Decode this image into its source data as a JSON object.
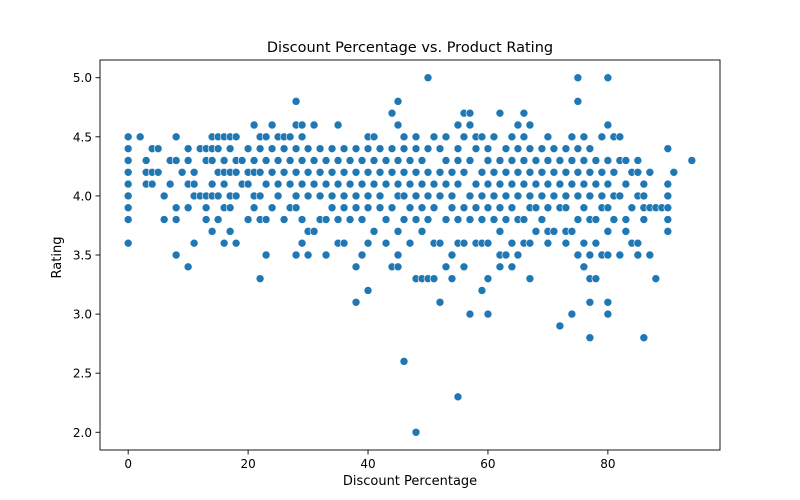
{
  "chart_data": {
    "type": "scatter",
    "title": "Discount Percentage vs. Product Rating",
    "xlabel": "Discount Percentage",
    "ylabel": "Rating",
    "xlim": [
      -4.7,
      98.7
    ],
    "ylim": [
      1.85,
      5.15
    ],
    "xticks": [
      0,
      20,
      40,
      60,
      80
    ],
    "yticks": [
      2.0,
      2.5,
      3.0,
      3.5,
      4.0,
      4.5,
      5.0
    ],
    "xtick_labels": [
      "0",
      "20",
      "40",
      "60",
      "80"
    ],
    "ytick_labels": [
      "2.0",
      "2.5",
      "3.0",
      "3.5",
      "4.0",
      "4.5",
      "5.0"
    ],
    "grid": false,
    "marker_color": "#1f77b4",
    "points": [
      [
        0,
        3.6
      ],
      [
        0,
        3.8
      ],
      [
        0,
        3.9
      ],
      [
        0,
        4.0
      ],
      [
        0,
        4.1
      ],
      [
        0,
        4.2
      ],
      [
        0,
        4.3
      ],
      [
        0,
        4.4
      ],
      [
        0,
        4.5
      ],
      [
        2,
        4.5
      ],
      [
        3,
        4.3
      ],
      [
        3,
        4.2
      ],
      [
        3,
        4.1
      ],
      [
        4,
        4.1
      ],
      [
        4,
        4.2
      ],
      [
        4,
        4.4
      ],
      [
        5,
        4.4
      ],
      [
        5,
        4.2
      ],
      [
        6,
        3.8
      ],
      [
        6,
        4.0
      ],
      [
        7,
        4.1
      ],
      [
        7,
        4.3
      ],
      [
        8,
        3.5
      ],
      [
        8,
        3.8
      ],
      [
        8,
        3.9
      ],
      [
        8,
        4.3
      ],
      [
        8,
        4.5
      ],
      [
        9,
        4.2
      ],
      [
        10,
        3.4
      ],
      [
        10,
        3.9
      ],
      [
        10,
        4.1
      ],
      [
        10,
        4.3
      ],
      [
        10,
        4.4
      ],
      [
        11,
        3.6
      ],
      [
        11,
        4.0
      ],
      [
        11,
        4.1
      ],
      [
        11,
        4.2
      ],
      [
        12,
        4.0
      ],
      [
        12,
        4.4
      ],
      [
        13,
        3.8
      ],
      [
        13,
        3.9
      ],
      [
        13,
        4.0
      ],
      [
        13,
        4.3
      ],
      [
        13,
        4.4
      ],
      [
        14,
        3.7
      ],
      [
        14,
        4.0
      ],
      [
        14,
        4.1
      ],
      [
        14,
        4.3
      ],
      [
        14,
        4.4
      ],
      [
        14,
        4.5
      ],
      [
        15,
        3.8
      ],
      [
        15,
        4.0
      ],
      [
        15,
        4.2
      ],
      [
        15,
        4.4
      ],
      [
        15,
        4.5
      ],
      [
        16,
        3.6
      ],
      [
        16,
        3.9
      ],
      [
        16,
        4.1
      ],
      [
        16,
        4.2
      ],
      [
        16,
        4.3
      ],
      [
        16,
        4.5
      ],
      [
        17,
        3.7
      ],
      [
        17,
        3.9
      ],
      [
        17,
        4.0
      ],
      [
        17,
        4.2
      ],
      [
        17,
        4.4
      ],
      [
        17,
        4.5
      ],
      [
        18,
        3.6
      ],
      [
        18,
        4.0
      ],
      [
        18,
        4.2
      ],
      [
        18,
        4.3
      ],
      [
        18,
        4.5
      ],
      [
        19,
        4.1
      ],
      [
        19,
        4.3
      ],
      [
        20,
        3.8
      ],
      [
        20,
        4.1
      ],
      [
        20,
        4.2
      ],
      [
        20,
        4.4
      ],
      [
        21,
        3.9
      ],
      [
        21,
        4.0
      ],
      [
        21,
        4.2
      ],
      [
        21,
        4.3
      ],
      [
        21,
        4.6
      ],
      [
        22,
        3.3
      ],
      [
        22,
        3.8
      ],
      [
        22,
        4.0
      ],
      [
        22,
        4.2
      ],
      [
        22,
        4.4
      ],
      [
        22,
        4.5
      ],
      [
        23,
        3.5
      ],
      [
        23,
        3.8
      ],
      [
        23,
        4.1
      ],
      [
        23,
        4.3
      ],
      [
        23,
        4.5
      ],
      [
        24,
        3.9
      ],
      [
        24,
        4.2
      ],
      [
        24,
        4.4
      ],
      [
        24,
        4.6
      ],
      [
        25,
        4.0
      ],
      [
        25,
        4.1
      ],
      [
        25,
        4.3
      ],
      [
        25,
        4.5
      ],
      [
        26,
        3.8
      ],
      [
        26,
        4.2
      ],
      [
        26,
        4.4
      ],
      [
        26,
        4.5
      ],
      [
        27,
        3.9
      ],
      [
        27,
        4.1
      ],
      [
        27,
        4.3
      ],
      [
        27,
        4.5
      ],
      [
        28,
        3.5
      ],
      [
        28,
        3.9
      ],
      [
        28,
        4.0
      ],
      [
        28,
        4.2
      ],
      [
        28,
        4.4
      ],
      [
        28,
        4.6
      ],
      [
        28,
        4.8
      ],
      [
        29,
        3.6
      ],
      [
        29,
        3.8
      ],
      [
        29,
        4.1
      ],
      [
        29,
        4.3
      ],
      [
        29,
        4.5
      ],
      [
        29,
        4.6
      ],
      [
        30,
        3.5
      ],
      [
        30,
        3.7
      ],
      [
        30,
        4.0
      ],
      [
        30,
        4.2
      ],
      [
        30,
        4.4
      ],
      [
        31,
        3.7
      ],
      [
        31,
        4.1
      ],
      [
        31,
        4.3
      ],
      [
        31,
        4.6
      ],
      [
        32,
        3.8
      ],
      [
        32,
        4.0
      ],
      [
        32,
        4.2
      ],
      [
        32,
        4.4
      ],
      [
        33,
        3.5
      ],
      [
        33,
        3.8
      ],
      [
        33,
        4.1
      ],
      [
        33,
        4.3
      ],
      [
        34,
        3.9
      ],
      [
        34,
        4.0
      ],
      [
        34,
        4.2
      ],
      [
        34,
        4.4
      ],
      [
        35,
        3.6
      ],
      [
        35,
        3.8
      ],
      [
        35,
        4.1
      ],
      [
        35,
        4.3
      ],
      [
        35,
        4.6
      ],
      [
        36,
        3.6
      ],
      [
        36,
        3.9
      ],
      [
        36,
        4.0
      ],
      [
        36,
        4.2
      ],
      [
        36,
        4.4
      ],
      [
        37,
        3.8
      ],
      [
        37,
        4.1
      ],
      [
        37,
        4.3
      ],
      [
        38,
        3.1
      ],
      [
        38,
        3.4
      ],
      [
        38,
        3.9
      ],
      [
        38,
        4.0
      ],
      [
        38,
        4.2
      ],
      [
        38,
        4.4
      ],
      [
        39,
        3.5
      ],
      [
        39,
        3.8
      ],
      [
        39,
        4.1
      ],
      [
        39,
        4.3
      ],
      [
        40,
        3.2
      ],
      [
        40,
        3.6
      ],
      [
        40,
        3.9
      ],
      [
        40,
        4.0
      ],
      [
        40,
        4.2
      ],
      [
        40,
        4.4
      ],
      [
        40,
        4.5
      ],
      [
        41,
        3.7
      ],
      [
        41,
        4.1
      ],
      [
        41,
        4.3
      ],
      [
        41,
        4.5
      ],
      [
        42,
        3.9
      ],
      [
        42,
        4.0
      ],
      [
        42,
        4.2
      ],
      [
        42,
        4.4
      ],
      [
        43,
        3.6
      ],
      [
        43,
        3.8
      ],
      [
        43,
        4.1
      ],
      [
        43,
        4.3
      ],
      [
        44,
        3.4
      ],
      [
        44,
        3.9
      ],
      [
        44,
        4.2
      ],
      [
        44,
        4.4
      ],
      [
        44,
        4.7
      ],
      [
        45,
        3.4
      ],
      [
        45,
        3.5
      ],
      [
        45,
        3.7
      ],
      [
        45,
        4.0
      ],
      [
        45,
        4.1
      ],
      [
        45,
        4.3
      ],
      [
        45,
        4.6
      ],
      [
        45,
        4.8
      ],
      [
        46,
        2.6
      ],
      [
        46,
        3.8
      ],
      [
        46,
        4.0
      ],
      [
        46,
        4.2
      ],
      [
        46,
        4.4
      ],
      [
        46,
        4.5
      ],
      [
        47,
        3.6
      ],
      [
        47,
        3.9
      ],
      [
        47,
        4.1
      ],
      [
        47,
        4.3
      ],
      [
        48,
        2.0
      ],
      [
        48,
        3.3
      ],
      [
        48,
        3.8
      ],
      [
        48,
        4.0
      ],
      [
        48,
        4.2
      ],
      [
        48,
        4.4
      ],
      [
        48,
        4.5
      ],
      [
        49,
        3.3
      ],
      [
        49,
        3.7
      ],
      [
        49,
        3.9
      ],
      [
        49,
        4.1
      ],
      [
        49,
        4.3
      ],
      [
        50,
        3.3
      ],
      [
        50,
        3.8
      ],
      [
        50,
        4.0
      ],
      [
        50,
        4.2
      ],
      [
        50,
        4.4
      ],
      [
        50,
        5.0
      ],
      [
        51,
        3.3
      ],
      [
        51,
        3.6
      ],
      [
        51,
        3.9
      ],
      [
        51,
        4.1
      ],
      [
        51,
        4.5
      ],
      [
        52,
        3.1
      ],
      [
        52,
        3.6
      ],
      [
        52,
        4.0
      ],
      [
        52,
        4.2
      ],
      [
        52,
        4.4
      ],
      [
        53,
        3.4
      ],
      [
        53,
        3.8
      ],
      [
        53,
        4.1
      ],
      [
        53,
        4.3
      ],
      [
        53,
        4.5
      ],
      [
        54,
        3.3
      ],
      [
        54,
        3.5
      ],
      [
        54,
        3.9
      ],
      [
        54,
        4.0
      ],
      [
        54,
        4.2
      ],
      [
        55,
        2.3
      ],
      [
        55,
        3.6
      ],
      [
        55,
        3.8
      ],
      [
        55,
        4.1
      ],
      [
        55,
        4.3
      ],
      [
        55,
        4.4
      ],
      [
        55,
        4.6
      ],
      [
        56,
        3.4
      ],
      [
        56,
        3.6
      ],
      [
        56,
        3.9
      ],
      [
        56,
        4.2
      ],
      [
        56,
        4.5
      ],
      [
        56,
        4.7
      ],
      [
        57,
        3.0
      ],
      [
        57,
        3.8
      ],
      [
        57,
        4.0
      ],
      [
        57,
        4.3
      ],
      [
        57,
        4.6
      ],
      [
        57,
        4.7
      ],
      [
        58,
        3.6
      ],
      [
        58,
        3.9
      ],
      [
        58,
        4.1
      ],
      [
        58,
        4.4
      ],
      [
        58,
        4.5
      ],
      [
        59,
        3.2
      ],
      [
        59,
        3.6
      ],
      [
        59,
        3.8
      ],
      [
        59,
        4.0
      ],
      [
        59,
        4.2
      ],
      [
        59,
        4.5
      ],
      [
        60,
        3.0
      ],
      [
        60,
        3.3
      ],
      [
        60,
        3.6
      ],
      [
        60,
        3.9
      ],
      [
        60,
        4.1
      ],
      [
        60,
        4.3
      ],
      [
        60,
        4.4
      ],
      [
        61,
        3.8
      ],
      [
        61,
        4.0
      ],
      [
        61,
        4.2
      ],
      [
        61,
        4.5
      ],
      [
        62,
        3.4
      ],
      [
        62,
        3.5
      ],
      [
        62,
        3.7
      ],
      [
        62,
        3.9
      ],
      [
        62,
        4.1
      ],
      [
        62,
        4.3
      ],
      [
        62,
        4.7
      ],
      [
        63,
        3.5
      ],
      [
        63,
        3.8
      ],
      [
        63,
        4.0
      ],
      [
        63,
        4.2
      ],
      [
        63,
        4.4
      ],
      [
        64,
        3.4
      ],
      [
        64,
        3.6
      ],
      [
        64,
        3.9
      ],
      [
        64,
        4.1
      ],
      [
        64,
        4.3
      ],
      [
        64,
        4.5
      ],
      [
        65,
        3.5
      ],
      [
        65,
        3.8
      ],
      [
        65,
        4.0
      ],
      [
        65,
        4.2
      ],
      [
        65,
        4.4
      ],
      [
        65,
        4.6
      ],
      [
        66,
        3.6
      ],
      [
        66,
        3.8
      ],
      [
        66,
        4.1
      ],
      [
        66,
        4.3
      ],
      [
        66,
        4.5
      ],
      [
        66,
        4.7
      ],
      [
        67,
        3.3
      ],
      [
        67,
        3.6
      ],
      [
        67,
        3.9
      ],
      [
        67,
        4.0
      ],
      [
        67,
        4.2
      ],
      [
        67,
        4.4
      ],
      [
        67,
        4.6
      ],
      [
        68,
        3.7
      ],
      [
        68,
        3.9
      ],
      [
        68,
        4.1
      ],
      [
        68,
        4.3
      ],
      [
        69,
        3.8
      ],
      [
        69,
        4.0
      ],
      [
        69,
        4.2
      ],
      [
        69,
        4.4
      ],
      [
        70,
        3.6
      ],
      [
        70,
        3.7
      ],
      [
        70,
        3.9
      ],
      [
        70,
        4.1
      ],
      [
        70,
        4.3
      ],
      [
        70,
        4.5
      ],
      [
        71,
        3.7
      ],
      [
        71,
        4.0
      ],
      [
        71,
        4.2
      ],
      [
        71,
        4.4
      ],
      [
        72,
        2.9
      ],
      [
        72,
        3.9
      ],
      [
        72,
        4.1
      ],
      [
        72,
        4.3
      ],
      [
        73,
        3.6
      ],
      [
        73,
        3.7
      ],
      [
        73,
        3.9
      ],
      [
        73,
        4.0
      ],
      [
        73,
        4.2
      ],
      [
        73,
        4.4
      ],
      [
        74,
        3.0
      ],
      [
        74,
        3.7
      ],
      [
        74,
        4.1
      ],
      [
        74,
        4.3
      ],
      [
        74,
        4.5
      ],
      [
        75,
        3.5
      ],
      [
        75,
        3.8
      ],
      [
        75,
        4.0
      ],
      [
        75,
        4.2
      ],
      [
        75,
        4.4
      ],
      [
        75,
        4.8
      ],
      [
        75,
        5.0
      ],
      [
        76,
        3.4
      ],
      [
        76,
        3.6
      ],
      [
        76,
        3.9
      ],
      [
        76,
        4.1
      ],
      [
        76,
        4.3
      ],
      [
        76,
        4.5
      ],
      [
        77,
        2.8
      ],
      [
        77,
        3.1
      ],
      [
        77,
        3.3
      ],
      [
        77,
        3.5
      ],
      [
        77,
        3.8
      ],
      [
        77,
        4.0
      ],
      [
        77,
        4.2
      ],
      [
        77,
        4.4
      ],
      [
        78,
        3.3
      ],
      [
        78,
        3.6
      ],
      [
        78,
        3.8
      ],
      [
        78,
        4.1
      ],
      [
        78,
        4.3
      ],
      [
        79,
        3.5
      ],
      [
        79,
        3.9
      ],
      [
        79,
        4.0
      ],
      [
        79,
        4.2
      ],
      [
        79,
        4.5
      ],
      [
        80,
        3.0
      ],
      [
        80,
        3.1
      ],
      [
        80,
        3.5
      ],
      [
        80,
        3.7
      ],
      [
        80,
        3.9
      ],
      [
        80,
        4.1
      ],
      [
        80,
        4.3
      ],
      [
        80,
        4.6
      ],
      [
        80,
        5.0
      ],
      [
        81,
        3.8
      ],
      [
        81,
        4.0
      ],
      [
        81,
        4.2
      ],
      [
        81,
        4.5
      ],
      [
        82,
        3.5
      ],
      [
        82,
        4.0
      ],
      [
        82,
        4.3
      ],
      [
        82,
        4.5
      ],
      [
        83,
        3.7
      ],
      [
        83,
        3.8
      ],
      [
        83,
        4.1
      ],
      [
        83,
        4.3
      ],
      [
        84,
        3.6
      ],
      [
        84,
        3.9
      ],
      [
        84,
        4.2
      ],
      [
        85,
        3.5
      ],
      [
        85,
        3.6
      ],
      [
        85,
        4.0
      ],
      [
        85,
        4.2
      ],
      [
        85,
        4.3
      ],
      [
        86,
        2.8
      ],
      [
        86,
        3.8
      ],
      [
        86,
        3.9
      ],
      [
        86,
        4.0
      ],
      [
        86,
        4.1
      ],
      [
        87,
        3.5
      ],
      [
        87,
        3.9
      ],
      [
        87,
        4.2
      ],
      [
        88,
        3.3
      ],
      [
        88,
        3.9
      ],
      [
        89,
        3.9
      ],
      [
        90,
        3.7
      ],
      [
        90,
        3.8
      ],
      [
        90,
        3.9
      ],
      [
        90,
        4.0
      ],
      [
        90,
        4.1
      ],
      [
        90,
        4.4
      ],
      [
        91,
        4.2
      ],
      [
        94,
        4.3
      ]
    ]
  }
}
